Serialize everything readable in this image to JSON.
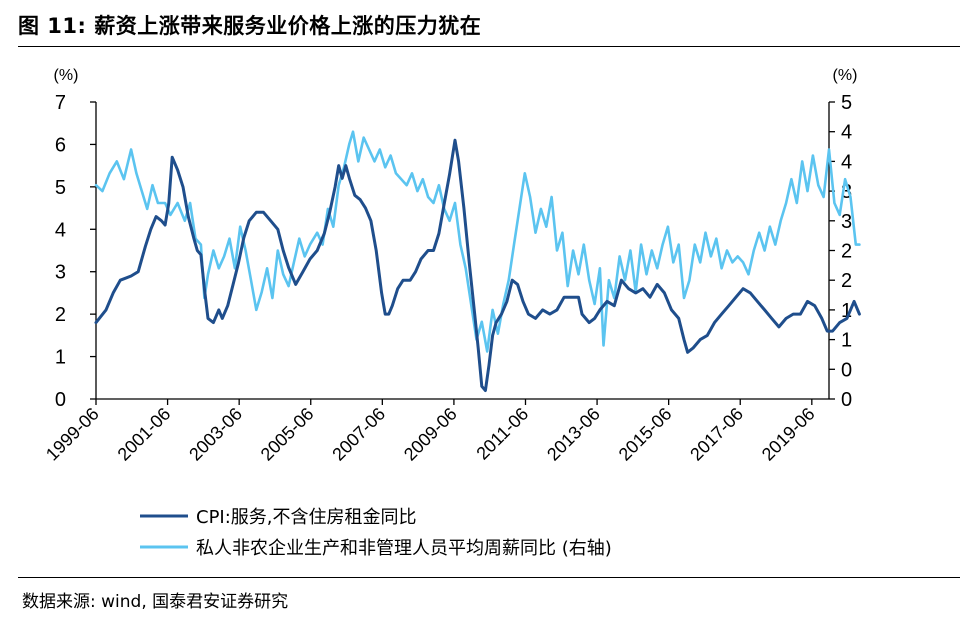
{
  "header": {
    "figure_label": "图 11:",
    "title": "薪资上涨带来服务业价格上涨的压力犹在"
  },
  "footer": {
    "source": "数据来源: wind, 国泰君安证券研究"
  },
  "chart_data": {
    "type": "line",
    "left_unit": "(%)",
    "right_unit": "(%)",
    "y_left_lim": [
      0,
      7
    ],
    "y_right_lim": [
      0,
      5
    ],
    "y_left_ticks": [
      "0",
      "1",
      "2",
      "3",
      "4",
      "5",
      "6",
      "7"
    ],
    "y_right_ticks": [
      "0",
      "0",
      "1",
      "1",
      "2",
      "2",
      "3",
      "3",
      "4",
      "4",
      "5"
    ],
    "x_tick_labels": [
      "1999-06",
      "2001-06",
      "2003-06",
      "2005-06",
      "2007-06",
      "2009-06",
      "2011-06",
      "2013-06",
      "2015-06",
      "2017-06",
      "2019-06"
    ],
    "x_ticks": [
      1999.42,
      2001.42,
      2003.42,
      2005.42,
      2007.42,
      2009.42,
      2011.42,
      2013.42,
      2015.42,
      2017.42,
      2019.42
    ],
    "x_range": [
      1999.42,
      2019.9
    ],
    "colors": {
      "series_a": "#1F4E8C",
      "series_b": "#5BC4F0"
    },
    "legend": "bottom",
    "series": [
      {
        "name": "CPI:服务,不含住房租金同比",
        "axis": "left",
        "points": [
          [
            1999.42,
            1.8
          ],
          [
            1999.7,
            2.1
          ],
          [
            1999.9,
            2.5
          ],
          [
            2000.1,
            2.8
          ],
          [
            2000.4,
            2.9
          ],
          [
            2000.6,
            3.0
          ],
          [
            2000.8,
            3.6
          ],
          [
            2000.95,
            4.0
          ],
          [
            2001.1,
            4.3
          ],
          [
            2001.25,
            4.2
          ],
          [
            2001.35,
            4.1
          ],
          [
            2001.45,
            4.6
          ],
          [
            2001.55,
            5.7
          ],
          [
            2001.7,
            5.4
          ],
          [
            2001.85,
            5.0
          ],
          [
            2002.0,
            4.3
          ],
          [
            2002.15,
            3.8
          ],
          [
            2002.25,
            3.5
          ],
          [
            2002.35,
            3.4
          ],
          [
            2002.45,
            2.6
          ],
          [
            2002.55,
            1.9
          ],
          [
            2002.7,
            1.8
          ],
          [
            2002.85,
            2.1
          ],
          [
            2002.95,
            1.9
          ],
          [
            2003.1,
            2.2
          ],
          [
            2003.25,
            2.7
          ],
          [
            2003.4,
            3.2
          ],
          [
            2003.55,
            3.8
          ],
          [
            2003.7,
            4.2
          ],
          [
            2003.9,
            4.4
          ],
          [
            2004.1,
            4.4
          ],
          [
            2004.3,
            4.2
          ],
          [
            2004.5,
            4.0
          ],
          [
            2004.65,
            3.5
          ],
          [
            2004.8,
            3.1
          ],
          [
            2005.0,
            2.7
          ],
          [
            2005.2,
            3.0
          ],
          [
            2005.4,
            3.3
          ],
          [
            2005.6,
            3.5
          ],
          [
            2005.8,
            3.9
          ],
          [
            2005.95,
            4.4
          ],
          [
            2006.1,
            5.0
          ],
          [
            2006.2,
            5.5
          ],
          [
            2006.3,
            5.2
          ],
          [
            2006.4,
            5.5
          ],
          [
            2006.5,
            5.2
          ],
          [
            2006.65,
            4.8
          ],
          [
            2006.8,
            4.7
          ],
          [
            2006.95,
            4.5
          ],
          [
            2007.1,
            4.2
          ],
          [
            2007.25,
            3.5
          ],
          [
            2007.4,
            2.5
          ],
          [
            2007.5,
            2.0
          ],
          [
            2007.6,
            2.0
          ],
          [
            2007.7,
            2.2
          ],
          [
            2007.85,
            2.6
          ],
          [
            2008.0,
            2.8
          ],
          [
            2008.2,
            2.8
          ],
          [
            2008.35,
            3.0
          ],
          [
            2008.5,
            3.3
          ],
          [
            2008.7,
            3.5
          ],
          [
            2008.85,
            3.5
          ],
          [
            2009.0,
            3.9
          ],
          [
            2009.15,
            4.6
          ],
          [
            2009.3,
            5.3
          ],
          [
            2009.45,
            6.1
          ],
          [
            2009.55,
            5.6
          ],
          [
            2009.7,
            4.5
          ],
          [
            2009.85,
            3.2
          ],
          [
            2010.0,
            2.0
          ],
          [
            2010.1,
            1.2
          ],
          [
            2010.2,
            0.3
          ],
          [
            2010.3,
            0.2
          ],
          [
            2010.4,
            0.8
          ],
          [
            2010.5,
            1.5
          ],
          [
            2010.6,
            1.8
          ],
          [
            2010.75,
            2.0
          ],
          [
            2010.9,
            2.3
          ],
          [
            2011.05,
            2.8
          ],
          [
            2011.2,
            2.7
          ],
          [
            2011.35,
            2.3
          ],
          [
            2011.5,
            2.0
          ],
          [
            2011.7,
            1.9
          ],
          [
            2011.9,
            2.1
          ],
          [
            2012.1,
            2.0
          ],
          [
            2012.3,
            2.1
          ],
          [
            2012.5,
            2.4
          ],
          [
            2012.7,
            2.4
          ],
          [
            2012.9,
            2.4
          ],
          [
            2013.0,
            2.0
          ],
          [
            2013.2,
            1.8
          ],
          [
            2013.35,
            1.9
          ],
          [
            2013.5,
            2.1
          ],
          [
            2013.7,
            2.3
          ],
          [
            2013.9,
            2.2
          ],
          [
            2014.1,
            2.8
          ],
          [
            2014.3,
            2.6
          ],
          [
            2014.5,
            2.5
          ],
          [
            2014.7,
            2.6
          ],
          [
            2014.9,
            2.4
          ],
          [
            2015.1,
            2.7
          ],
          [
            2015.3,
            2.5
          ],
          [
            2015.5,
            2.1
          ],
          [
            2015.7,
            1.9
          ],
          [
            2015.85,
            1.4
          ],
          [
            2015.95,
            1.1
          ],
          [
            2016.1,
            1.2
          ],
          [
            2016.3,
            1.4
          ],
          [
            2016.5,
            1.5
          ],
          [
            2016.7,
            1.8
          ],
          [
            2016.9,
            2.0
          ],
          [
            2017.1,
            2.2
          ],
          [
            2017.3,
            2.4
          ],
          [
            2017.5,
            2.6
          ],
          [
            2017.7,
            2.5
          ],
          [
            2017.9,
            2.3
          ],
          [
            2018.1,
            2.1
          ],
          [
            2018.3,
            1.9
          ],
          [
            2018.5,
            1.7
          ],
          [
            2018.7,
            1.9
          ],
          [
            2018.9,
            2.0
          ],
          [
            2019.1,
            2.0
          ],
          [
            2019.3,
            2.3
          ],
          [
            2019.5,
            2.2
          ],
          [
            2019.7,
            1.9
          ],
          [
            2019.85,
            1.6
          ],
          [
            2020.0,
            1.6
          ],
          [
            2020.2,
            1.8
          ],
          [
            2020.4,
            1.9
          ],
          [
            2020.6,
            2.3
          ],
          [
            2020.75,
            2.0
          ]
        ]
      },
      {
        "name": "私人非农企业生产和非管理人员平均周薪同比 (右轴)",
        "axis": "right",
        "points": [
          [
            1999.42,
            3.6
          ],
          [
            1999.6,
            3.5
          ],
          [
            1999.8,
            3.8
          ],
          [
            2000.0,
            4.0
          ],
          [
            2000.2,
            3.7
          ],
          [
            2000.4,
            4.2
          ],
          [
            2000.55,
            3.8
          ],
          [
            2000.7,
            3.5
          ],
          [
            2000.85,
            3.2
          ],
          [
            2001.0,
            3.6
          ],
          [
            2001.15,
            3.3
          ],
          [
            2001.35,
            3.3
          ],
          [
            2001.5,
            3.1
          ],
          [
            2001.7,
            3.3
          ],
          [
            2001.9,
            3.0
          ],
          [
            2002.05,
            3.3
          ],
          [
            2002.2,
            2.7
          ],
          [
            2002.35,
            2.6
          ],
          [
            2002.45,
            1.7
          ],
          [
            2002.55,
            2.1
          ],
          [
            2002.7,
            2.5
          ],
          [
            2002.85,
            2.2
          ],
          [
            2003.0,
            2.4
          ],
          [
            2003.15,
            2.7
          ],
          [
            2003.3,
            2.2
          ],
          [
            2003.45,
            2.9
          ],
          [
            2003.6,
            2.5
          ],
          [
            2003.75,
            2.0
          ],
          [
            2003.9,
            1.5
          ],
          [
            2004.05,
            1.8
          ],
          [
            2004.2,
            2.2
          ],
          [
            2004.35,
            1.7
          ],
          [
            2004.5,
            2.5
          ],
          [
            2004.65,
            2.1
          ],
          [
            2004.8,
            1.9
          ],
          [
            2004.95,
            2.3
          ],
          [
            2005.1,
            2.7
          ],
          [
            2005.25,
            2.4
          ],
          [
            2005.4,
            2.6
          ],
          [
            2005.6,
            2.8
          ],
          [
            2005.75,
            2.6
          ],
          [
            2005.9,
            3.2
          ],
          [
            2006.05,
            2.9
          ],
          [
            2006.2,
            3.6
          ],
          [
            2006.35,
            3.9
          ],
          [
            2006.5,
            4.3
          ],
          [
            2006.6,
            4.5
          ],
          [
            2006.75,
            4.0
          ],
          [
            2006.9,
            4.4
          ],
          [
            2007.05,
            4.2
          ],
          [
            2007.2,
            4.0
          ],
          [
            2007.35,
            4.2
          ],
          [
            2007.5,
            3.9
          ],
          [
            2007.65,
            4.1
          ],
          [
            2007.8,
            3.8
          ],
          [
            2007.95,
            3.7
          ],
          [
            2008.1,
            3.6
          ],
          [
            2008.25,
            3.8
          ],
          [
            2008.4,
            3.5
          ],
          [
            2008.55,
            3.7
          ],
          [
            2008.7,
            3.4
          ],
          [
            2008.85,
            3.3
          ],
          [
            2009.0,
            3.6
          ],
          [
            2009.15,
            3.2
          ],
          [
            2009.3,
            3.0
          ],
          [
            2009.45,
            3.3
          ],
          [
            2009.6,
            2.6
          ],
          [
            2009.75,
            2.2
          ],
          [
            2009.9,
            1.6
          ],
          [
            2010.05,
            1.0
          ],
          [
            2010.2,
            1.3
          ],
          [
            2010.35,
            0.8
          ],
          [
            2010.5,
            1.5
          ],
          [
            2010.65,
            1.1
          ],
          [
            2010.8,
            1.6
          ],
          [
            2010.95,
            2.0
          ],
          [
            2011.1,
            2.6
          ],
          [
            2011.25,
            3.2
          ],
          [
            2011.4,
            3.8
          ],
          [
            2011.55,
            3.4
          ],
          [
            2011.7,
            2.8
          ],
          [
            2011.85,
            3.2
          ],
          [
            2012.0,
            2.9
          ],
          [
            2012.15,
            3.4
          ],
          [
            2012.3,
            2.5
          ],
          [
            2012.45,
            2.8
          ],
          [
            2012.6,
            1.9
          ],
          [
            2012.75,
            2.5
          ],
          [
            2012.9,
            2.1
          ],
          [
            2013.05,
            2.6
          ],
          [
            2013.2,
            2.0
          ],
          [
            2013.35,
            1.6
          ],
          [
            2013.5,
            2.2
          ],
          [
            2013.6,
            0.9
          ],
          [
            2013.75,
            2.0
          ],
          [
            2013.9,
            1.7
          ],
          [
            2014.05,
            2.4
          ],
          [
            2014.2,
            2.0
          ],
          [
            2014.35,
            2.5
          ],
          [
            2014.5,
            1.8
          ],
          [
            2014.65,
            2.6
          ],
          [
            2014.8,
            2.1
          ],
          [
            2014.95,
            2.5
          ],
          [
            2015.1,
            2.2
          ],
          [
            2015.25,
            2.6
          ],
          [
            2015.4,
            2.9
          ],
          [
            2015.55,
            2.3
          ],
          [
            2015.7,
            2.6
          ],
          [
            2015.85,
            1.7
          ],
          [
            2016.0,
            2.0
          ],
          [
            2016.15,
            2.6
          ],
          [
            2016.3,
            2.3
          ],
          [
            2016.45,
            2.8
          ],
          [
            2016.6,
            2.4
          ],
          [
            2016.75,
            2.7
          ],
          [
            2016.9,
            2.2
          ],
          [
            2017.05,
            2.5
          ],
          [
            2017.2,
            2.3
          ],
          [
            2017.35,
            2.4
          ],
          [
            2017.5,
            2.3
          ],
          [
            2017.65,
            2.1
          ],
          [
            2017.8,
            2.5
          ],
          [
            2017.95,
            2.8
          ],
          [
            2018.1,
            2.5
          ],
          [
            2018.25,
            2.9
          ],
          [
            2018.4,
            2.6
          ],
          [
            2018.55,
            3.0
          ],
          [
            2018.7,
            3.3
          ],
          [
            2018.85,
            3.7
          ],
          [
            2019.0,
            3.3
          ],
          [
            2019.15,
            4.0
          ],
          [
            2019.3,
            3.5
          ],
          [
            2019.45,
            4.1
          ],
          [
            2019.6,
            3.6
          ],
          [
            2019.75,
            3.4
          ],
          [
            2019.9,
            4.2
          ],
          [
            2020.05,
            3.3
          ],
          [
            2020.2,
            3.1
          ],
          [
            2020.35,
            3.7
          ],
          [
            2020.5,
            3.4
          ],
          [
            2020.65,
            2.6
          ],
          [
            2020.75,
            2.6
          ]
        ]
      }
    ]
  }
}
